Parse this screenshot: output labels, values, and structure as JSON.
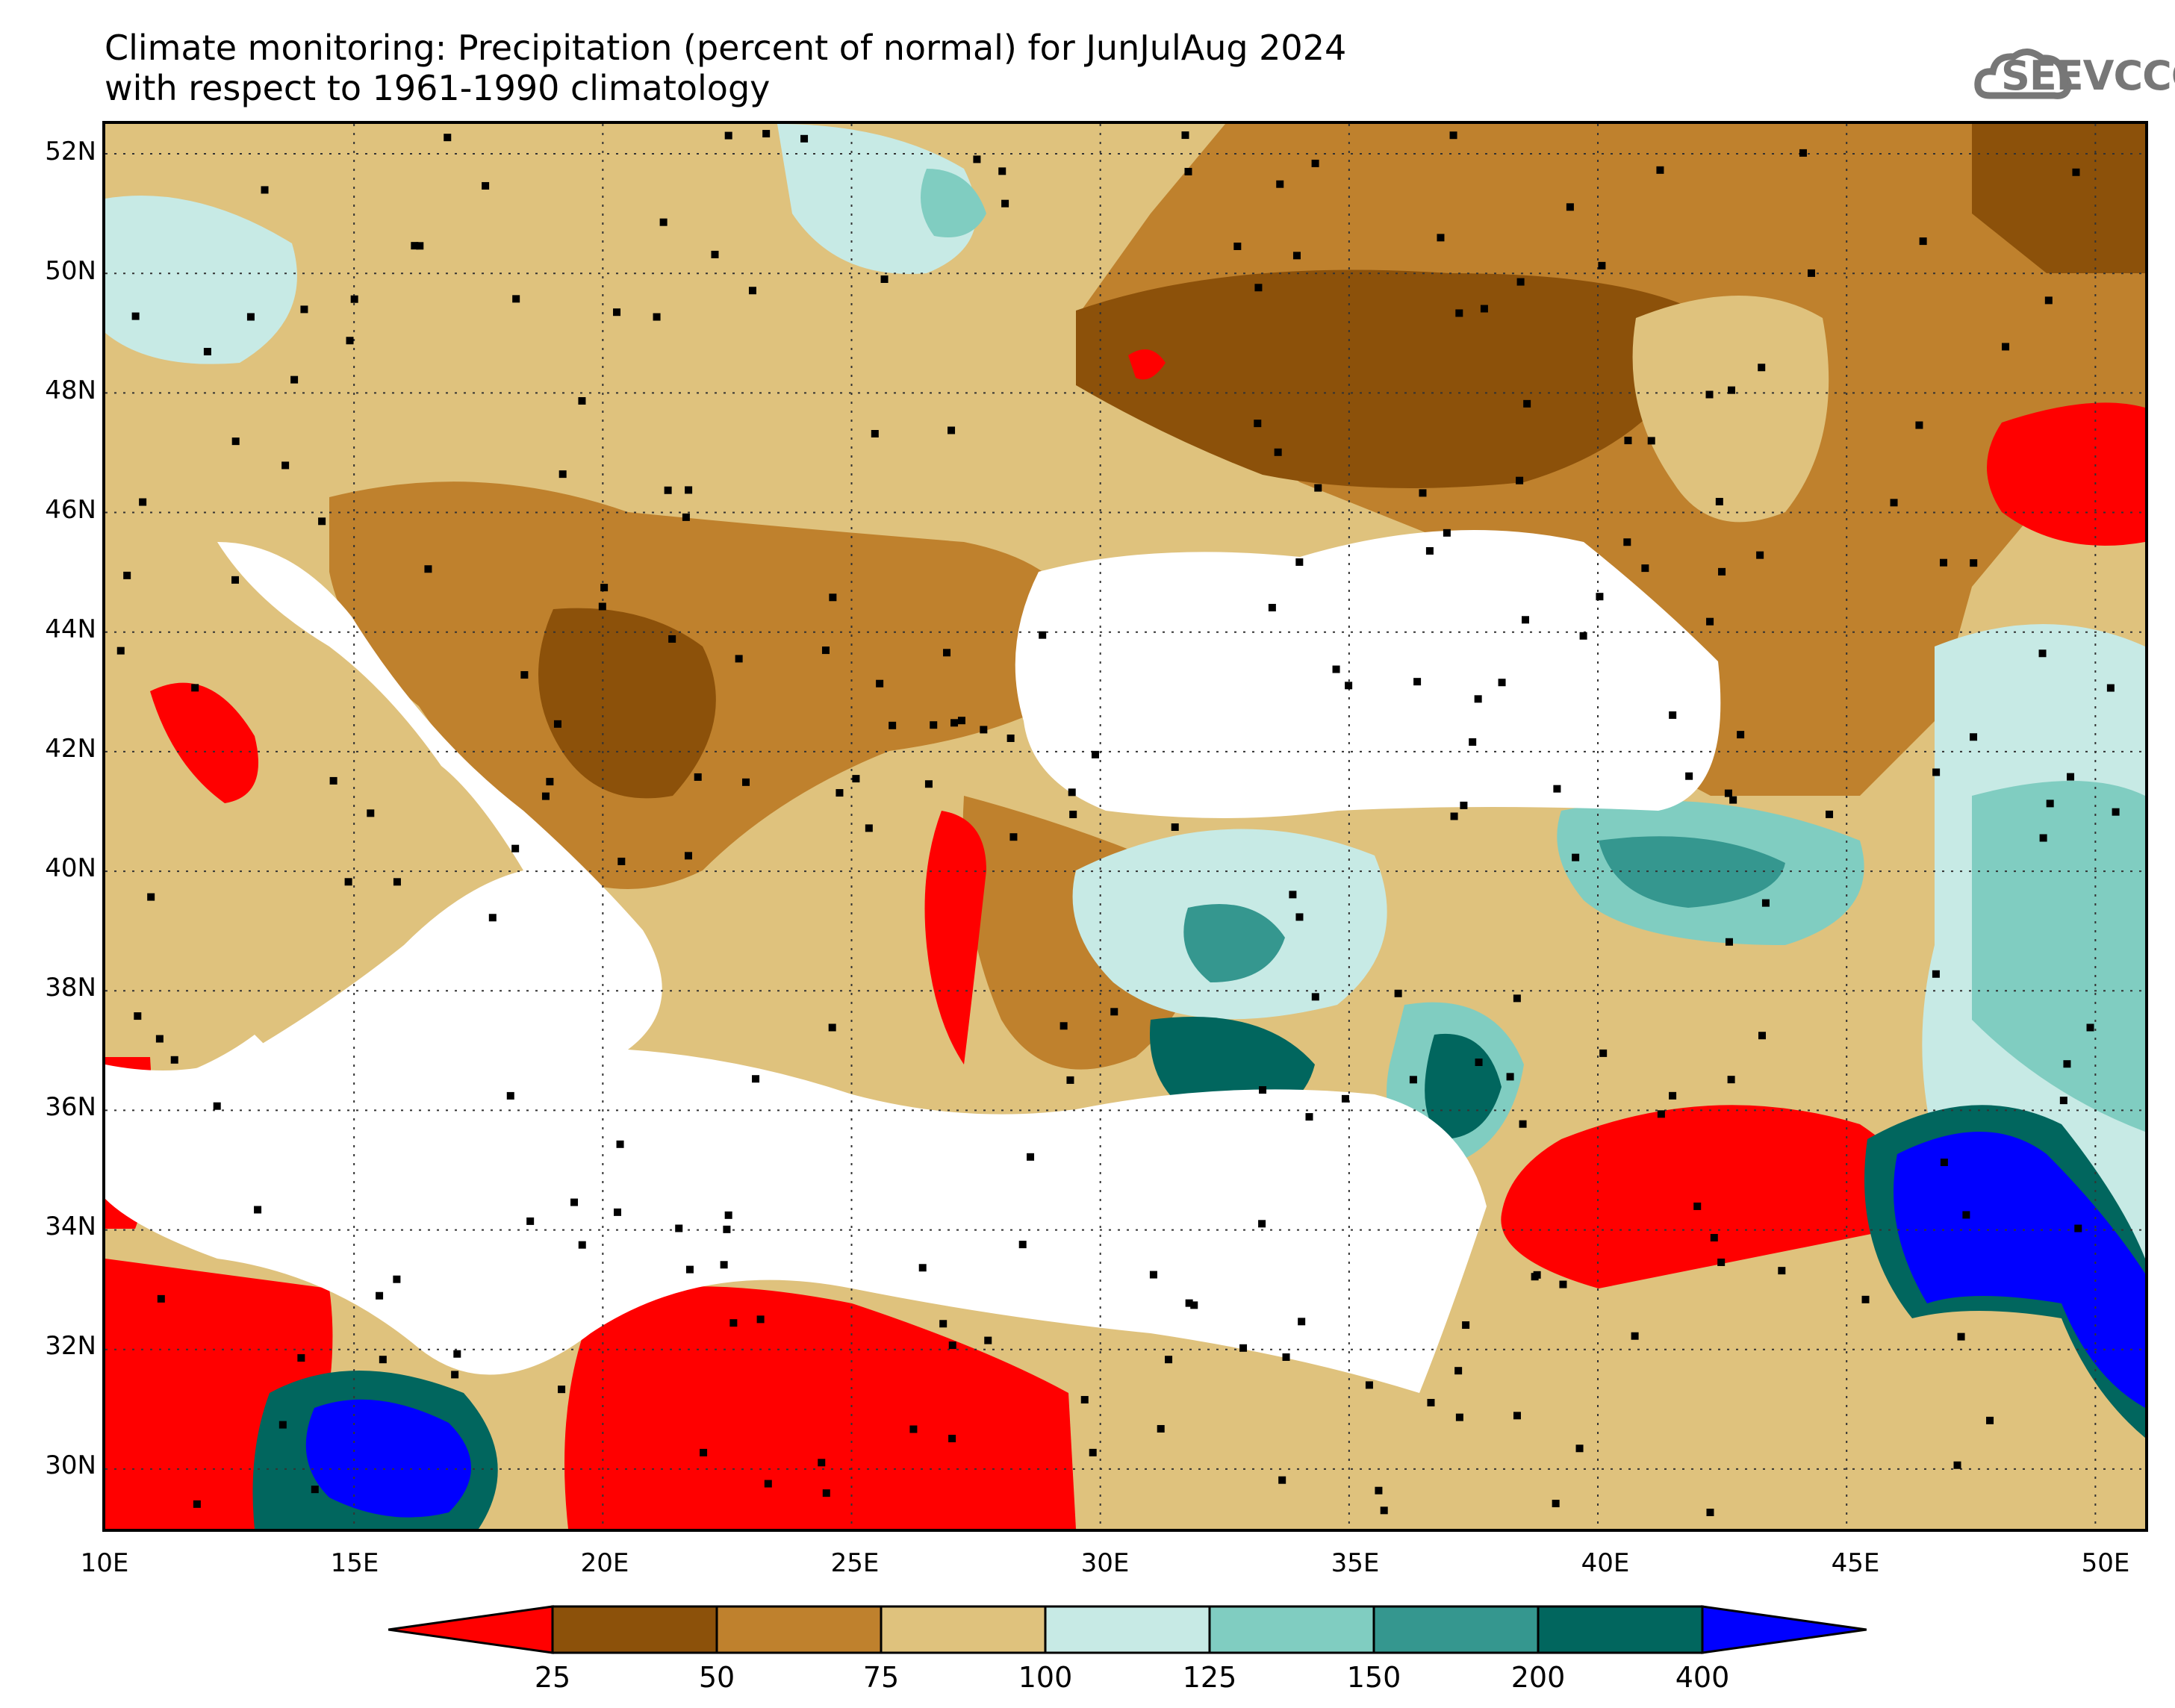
{
  "title": {
    "line1": "Climate monitoring: Precipitation (percent of normal) for JunJulAug 2024",
    "line2": "with respect to 1961-1990 climatology"
  },
  "logo": {
    "text": "SEEVCCC",
    "icon": "cloud-logo-icon"
  },
  "axes": {
    "lat_labels": [
      "52N",
      "50N",
      "48N",
      "46N",
      "44N",
      "42N",
      "40N",
      "38N",
      "36N",
      "34N",
      "32N",
      "30N"
    ],
    "lon_labels": [
      "10E",
      "15E",
      "20E",
      "25E",
      "30E",
      "35E",
      "40E",
      "45E",
      "50E"
    ],
    "lat_range": [
      29,
      52.5
    ],
    "lon_range": [
      10,
      51
    ]
  },
  "colorbar": {
    "ticks": [
      "25",
      "50",
      "75",
      "100",
      "125",
      "150",
      "200",
      "400"
    ],
    "colors": [
      "#ff0000",
      "#8c510a",
      "#bf812d",
      "#dfc27d",
      "#c7eae5",
      "#80cdc1",
      "#35978f",
      "#01665e",
      "#0000ff"
    ]
  },
  "map_colors": {
    "water": "#ffffff",
    "brown_dark": "#8c510a",
    "brown": "#bf812d",
    "tan": "#dfc27d",
    "teal_light": "#c7eae5",
    "teal": "#80cdc1",
    "teal_mid": "#35978f",
    "teal_dark": "#01665e",
    "red": "#ff0000",
    "blue": "#0000ff"
  }
}
